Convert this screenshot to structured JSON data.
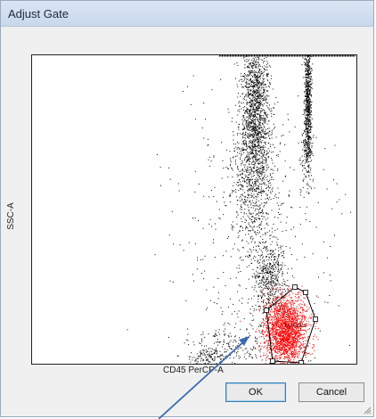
{
  "window": {
    "title": "Adjust Gate"
  },
  "plot": {
    "x_label": "CD45 PerCP-A",
    "y_label": "SSC-A",
    "gate_label": "Lymphs",
    "colors": {
      "events": "#000000",
      "gated_events": "#ff0000",
      "gate_outline": "#000000"
    }
  },
  "buttons": {
    "ok_label": "OK",
    "cancel_label": "Cancel"
  },
  "icons": {
    "resize_grip": "resize-grip-icon",
    "annotation_arrow": "arrow-icon"
  },
  "annotation": {
    "arrow_color": "#3a6ab0"
  }
}
